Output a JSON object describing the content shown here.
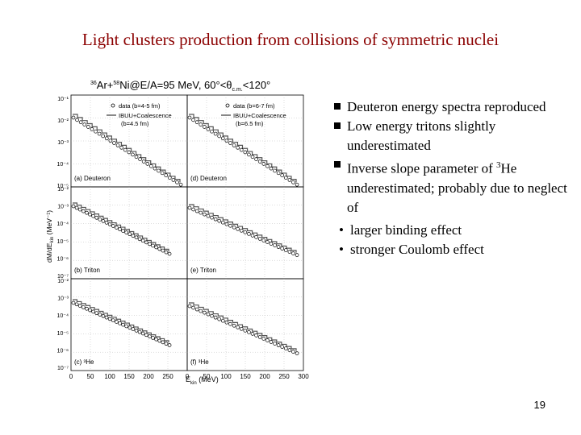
{
  "slide": {
    "title": "Light clusters production from collisions of symmetric nuclei",
    "page_number": "19"
  },
  "bullets": [
    {
      "text_pre": "Deuteron energy spectra reproduced"
    },
    {
      "text_pre": "Low energy tritons slightly underestimated"
    },
    {
      "text_pre": "Inverse slope parameter of ",
      "sup": "3",
      "text_post": "He underestimated; probably due to neglect of"
    }
  ],
  "sub_bullets": [
    "larger binding effect",
    "stronger Coulomb effect"
  ],
  "figure": {
    "header_prefix": "36",
    "header_ar": "Ar+",
    "header_prefix2": "58",
    "header_main": "Ni@E/A=95 MeV, 60°<θ",
    "header_sub": "c.m.",
    "header_end": "<120°",
    "ylabel": "dM/dE",
    "ylabel_sub": "kin",
    "ylabel_unit": " (MeV⁻¹)",
    "xlabel": "E",
    "xlabel_sub": "kin",
    "xlabel_unit": " (MeV)",
    "legend_left": {
      "data": "data (b=4-5 fm)",
      "model": "IBUU+Coalescence",
      "model2": "(b=4.5 fm)"
    },
    "legend_right": {
      "data": "data (b=6-7 fm)",
      "model": "IBUU+Coalescence",
      "model2": "(b=6.5 fm)"
    },
    "x_ticks": [
      "0",
      "50",
      "100",
      "150",
      "200",
      "250",
      "0",
      "50",
      "100",
      "150",
      "200",
      "250",
      "300"
    ],
    "y_ticks_row1": [
      "10⁻¹",
      "10⁻²",
      "10⁻³",
      "10⁻⁴",
      "10⁻⁵"
    ],
    "y_ticks_row2": [
      "10⁻²",
      "10⁻³",
      "10⁻⁴",
      "10⁻⁵",
      "10⁻⁶",
      "10⁻⁷"
    ],
    "y_ticks_row3": [
      "10⁻²",
      "10⁻³",
      "10⁻⁴",
      "10⁻⁵",
      "10⁻⁶",
      "10⁻⁷"
    ],
    "panels": [
      {
        "label": "(a) Deuteron"
      },
      {
        "label": "(d) Deuteron"
      },
      {
        "label": "(b) Triton"
      },
      {
        "label": "(e) Triton"
      },
      {
        "label": "(c) ³He"
      },
      {
        "label": "(f) ³He"
      }
    ]
  }
}
